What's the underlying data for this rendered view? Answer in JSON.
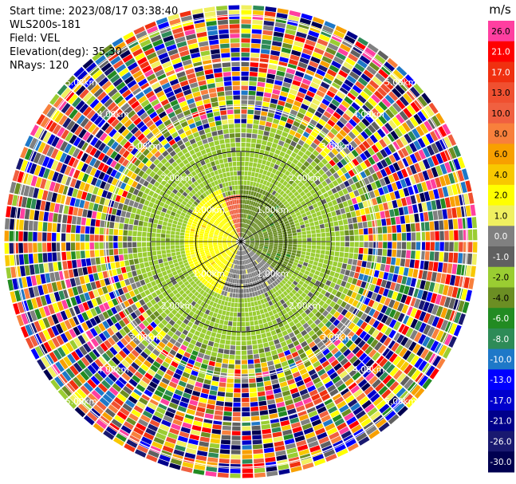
{
  "header": {
    "start_time": "Start time: 2023/08/17 03:38:40",
    "instrument": "WLS200s-181",
    "field": "Field: VEL",
    "elevation": "Elevation(deg): 35.30",
    "nrays": "NRays: 120"
  },
  "chart_data": {
    "type": "heatmap",
    "subtype": "ppi-polar",
    "field": "VEL",
    "unit": "m/s",
    "nrays": 120,
    "range_rings": [
      {
        "range_km": 1.0,
        "label": "1.00km"
      },
      {
        "range_km": 2.0,
        "label": "2.00km"
      },
      {
        "range_km": 3.0,
        "label": "3.00km"
      },
      {
        "range_km": 4.0,
        "label": "4.00km"
      },
      {
        "range_km": 5.0,
        "label": "5.00km"
      }
    ],
    "max_range_km": 5.3,
    "spoke_angles_deg": [
      0,
      30,
      60,
      90,
      120,
      150,
      180,
      210,
      240,
      270,
      300,
      330
    ],
    "colorbar": {
      "unit": "m/s",
      "levels": [
        {
          "label": "26.0",
          "color": "#ff3fa0"
        },
        {
          "label": "21.0",
          "color": "#ff0000"
        },
        {
          "label": "17.0",
          "color": "#f03010"
        },
        {
          "label": "13.0",
          "color": "#f05030"
        },
        {
          "label": "10.0",
          "color": "#f06040"
        },
        {
          "label": "8.0",
          "color": "#f8803c"
        },
        {
          "label": "6.0",
          "color": "#f8a000"
        },
        {
          "label": "4.0",
          "color": "#f8c800"
        },
        {
          "label": "2.0",
          "color": "#ffff00"
        },
        {
          "label": "1.0",
          "color": "#f0f060"
        },
        {
          "label": "0.0",
          "color": "#808080"
        },
        {
          "label": "-1.0",
          "color": "#606060"
        },
        {
          "label": "-2.0",
          "color": "#9acd32"
        },
        {
          "label": "-4.0",
          "color": "#6b8e23"
        },
        {
          "label": "-6.0",
          "color": "#228b22"
        },
        {
          "label": "-8.0",
          "color": "#2e8b57"
        },
        {
          "label": "-10.0",
          "color": "#1e78c8"
        },
        {
          "label": "-13.0",
          "color": "#0000ff"
        },
        {
          "label": "-17.0",
          "color": "#0000cd"
        },
        {
          "label": "-21.0",
          "color": "#00008b"
        },
        {
          "label": "-26.0",
          "color": "#191970"
        },
        {
          "label": "-30.0",
          "color": "#000050"
        }
      ]
    },
    "regions_description_free": true,
    "inner_pattern": [
      {
        "range_km": [
          0.0,
          1.3
        ],
        "azimuth_deg": [
          200,
          340
        ],
        "value_ms": 2.0
      },
      {
        "range_km": [
          0.0,
          1.0
        ],
        "azimuth_deg": [
          340,
          360
        ],
        "value_ms": 10.0
      },
      {
        "range_km": [
          0.0,
          1.3
        ],
        "azimuth_deg": [
          0,
          130
        ],
        "value_ms": -4.0
      },
      {
        "range_km": [
          0.0,
          1.3
        ],
        "azimuth_deg": [
          130,
          200
        ],
        "value_ms": 0.0
      },
      {
        "range_km": [
          1.3,
          2.3
        ],
        "azimuth_deg": [
          0,
          360
        ],
        "value_ms": -2.0
      }
    ]
  }
}
